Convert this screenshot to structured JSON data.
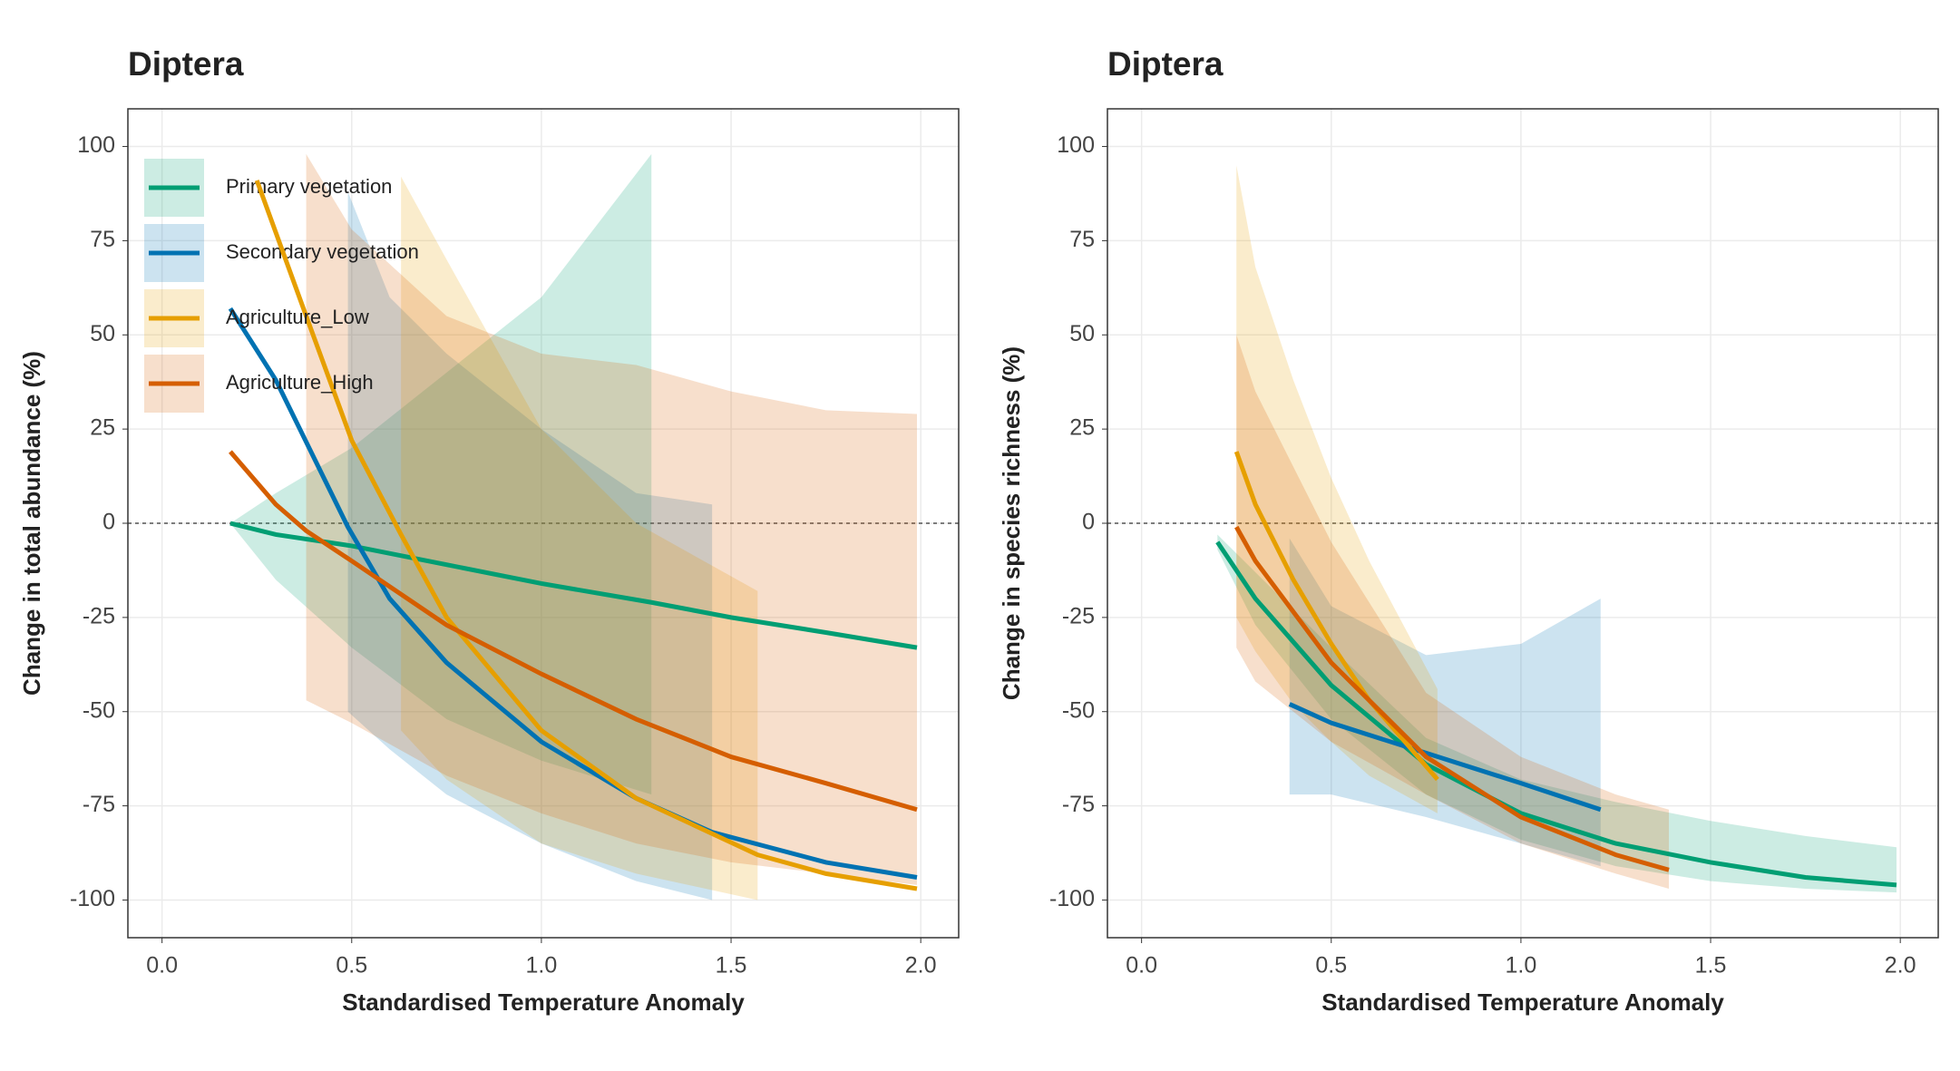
{
  "chart_data": [
    {
      "type": "line",
      "title": "Diptera",
      "x_label": "Standardised Temperature Anomaly",
      "y_label": "Change in total abundance (%)",
      "xlim": [
        -0.09,
        2.1
      ],
      "ylim": [
        -110,
        110
      ],
      "xticks": [
        {
          "value": 0,
          "label": "0.0"
        },
        {
          "value": 0.5,
          "label": "0.5"
        },
        {
          "value": 1,
          "label": "1.0"
        },
        {
          "value": 1.5,
          "label": "1.5"
        },
        {
          "value": 2,
          "label": "2.0"
        }
      ],
      "yticks": [
        100,
        75,
        50,
        25,
        0,
        -25,
        -50,
        -75,
        -100
      ],
      "grid": true,
      "reference_line": 0,
      "legend": "top-left",
      "series": [
        {
          "name": "Primary vegetation",
          "color": "#009E73",
          "x": [
            0.18,
            0.3,
            0.5,
            0.75,
            1.0,
            1.29,
            1.5,
            1.75,
            1.99
          ],
          "values": [
            0,
            -3,
            -6,
            -11,
            -16,
            -21,
            -25,
            -29,
            -33
          ],
          "upper": [
            0,
            8,
            20,
            40,
            60,
            98,
            null,
            null,
            null
          ],
          "lower": [
            0,
            -15,
            -33,
            -52,
            -63,
            -72,
            null,
            null,
            null
          ]
        },
        {
          "name": "Secondary vegetation",
          "color": "#0072B2",
          "x": [
            0.18,
            0.3,
            0.49,
            0.6,
            0.75,
            1.0,
            1.25,
            1.45,
            1.75,
            1.99
          ],
          "values": [
            57,
            38,
            -1,
            -20,
            -37,
            -58,
            -73,
            -82,
            -90,
            -94
          ],
          "upper": [
            null,
            null,
            88,
            60,
            45,
            25,
            8,
            5,
            null,
            null
          ],
          "lower": [
            null,
            null,
            -50,
            -60,
            -72,
            -85,
            -95,
            -100,
            null,
            null
          ]
        },
        {
          "name": "Agriculture_Low",
          "color": "#E69F00",
          "x": [
            0.25,
            0.38,
            0.5,
            0.63,
            0.75,
            1.0,
            1.25,
            1.57,
            1.75,
            1.99
          ],
          "values": [
            91,
            55,
            22,
            -3,
            -25,
            -55,
            -73,
            -88,
            -93,
            -97
          ],
          "upper": [
            null,
            null,
            null,
            92,
            70,
            25,
            0,
            -18,
            null,
            null
          ],
          "lower": [
            null,
            null,
            null,
            -55,
            -68,
            -85,
            -93,
            -100,
            null,
            null
          ]
        },
        {
          "name": "Agriculture_High",
          "color": "#D55E00",
          "x": [
            0.18,
            0.3,
            0.38,
            0.5,
            0.75,
            1.0,
            1.25,
            1.5,
            1.75,
            1.99
          ],
          "values": [
            19,
            5,
            -2,
            -10,
            -27,
            -40,
            -52,
            -62,
            -69,
            -76
          ],
          "upper": [
            null,
            null,
            98,
            78,
            55,
            45,
            42,
            35,
            30,
            29
          ],
          "lower": [
            null,
            null,
            -47,
            -53,
            -67,
            -77,
            -85,
            -90,
            -93,
            -96
          ]
        }
      ]
    },
    {
      "type": "line",
      "title": "Diptera",
      "x_label": "Standardised Temperature Anomaly",
      "y_label": "Change in species richness (%)",
      "xlim": [
        -0.09,
        2.1
      ],
      "ylim": [
        -110,
        110
      ],
      "xticks": [
        {
          "value": 0,
          "label": "0.0"
        },
        {
          "value": 0.5,
          "label": "0.5"
        },
        {
          "value": 1,
          "label": "1.0"
        },
        {
          "value": 1.5,
          "label": "1.5"
        },
        {
          "value": 2,
          "label": "2.0"
        }
      ],
      "yticks": [
        100,
        75,
        50,
        25,
        0,
        -25,
        -50,
        -75,
        -100
      ],
      "grid": true,
      "reference_line": 0,
      "series": [
        {
          "color": "#009E73",
          "x": [
            0.2,
            0.3,
            0.5,
            0.75,
            1.0,
            1.25,
            1.5,
            1.75,
            1.99
          ],
          "values": [
            -5,
            -20,
            -43,
            -64,
            -77,
            -85,
            -90,
            -94,
            -96
          ],
          "upper": [
            -3,
            -13,
            -33,
            -57,
            -68,
            -74,
            -79,
            -83,
            -86
          ],
          "lower": [
            -7,
            -27,
            -52,
            -72,
            -84,
            -91,
            -95,
            -97,
            -98
          ]
        },
        {
          "color": "#0072B2",
          "x": [
            0.39,
            0.5,
            0.75,
            1.0,
            1.21
          ],
          "values": [
            -48,
            -53,
            -61,
            -69,
            -76
          ],
          "upper": [
            -4,
            -22,
            -35,
            -32,
            -20
          ],
          "lower": [
            -72,
            -72,
            -78,
            -85,
            -91
          ]
        },
        {
          "color": "#E69F00",
          "x": [
            0.25,
            0.3,
            0.4,
            0.5,
            0.6,
            0.78
          ],
          "values": [
            19,
            5,
            -15,
            -32,
            -47,
            -68
          ],
          "upper": [
            95,
            68,
            38,
            12,
            -10,
            -44
          ],
          "lower": [
            -25,
            -34,
            -48,
            -58,
            -67,
            -77
          ]
        },
        {
          "color": "#D55E00",
          "x": [
            0.25,
            0.3,
            0.5,
            0.75,
            1.0,
            1.25,
            1.39
          ],
          "values": [
            -1,
            -10,
            -37,
            -62,
            -78,
            -88,
            -92
          ],
          "upper": [
            50,
            35,
            -5,
            -45,
            -62,
            -72,
            -76
          ],
          "lower": [
            -33,
            -42,
            -58,
            -72,
            -85,
            -93,
            -97
          ]
        }
      ]
    }
  ]
}
